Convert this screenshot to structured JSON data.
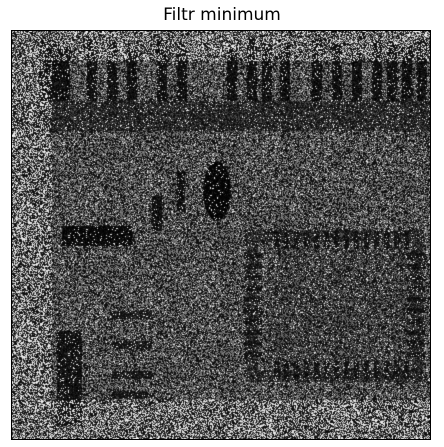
{
  "title": "Filtr minimum",
  "image": {
    "alt_name": "min-filtered-pcb-image",
    "palette": {
      "background": "#ffffff",
      "dark": "#000000",
      "mid": "#6f6f6f",
      "light": "#e8e8e8"
    }
  }
}
